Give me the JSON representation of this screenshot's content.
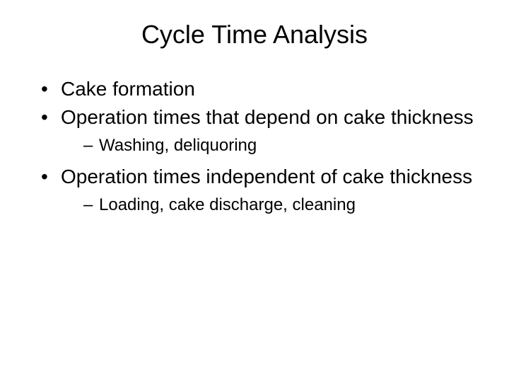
{
  "slide": {
    "title": "Cycle Time Analysis",
    "bullets": [
      {
        "text": "Cake formation"
      },
      {
        "text": "Operation times that depend on cake thickness",
        "sub": [
          "Washing, deliquoring"
        ]
      },
      {
        "text": "Operation times independent of cake thickness",
        "sub": [
          "Loading, cake discharge, cleaning"
        ]
      }
    ]
  },
  "colors": {
    "background": "#ffffff",
    "text": "#000000"
  },
  "typography": {
    "title_fontsize": 36,
    "bullet_fontsize": 28,
    "sub_fontsize": 24,
    "font_family": "Arial"
  }
}
